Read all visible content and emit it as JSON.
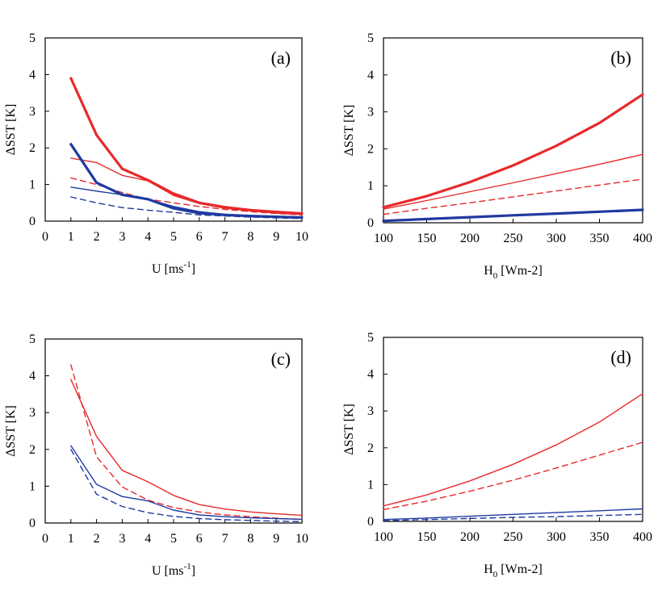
{
  "colors": {
    "red": "#e8292b",
    "blue": "#1f3aa0"
  },
  "chart_data": [
    {
      "type": "line",
      "panel_label": "(a)",
      "xlabel": {
        "main": "U [ms",
        "sup": "-1",
        "end": "]"
      },
      "ylabel": "ΔSST [K]",
      "xlim": [
        0,
        10
      ],
      "ylim": [
        0,
        5
      ],
      "xticks": [
        "0",
        "1",
        "2",
        "3",
        "4",
        "5",
        "6",
        "7",
        "8",
        "9",
        "10"
      ],
      "yticks": [
        "0",
        "1",
        "2",
        "3",
        "4",
        "5"
      ],
      "series": [
        {
          "color": "red",
          "style": "thick",
          "x": [
            1,
            2,
            3,
            4,
            5,
            6,
            7,
            8,
            9,
            10
          ],
          "y": [
            3.9,
            2.35,
            1.43,
            1.12,
            0.75,
            0.5,
            0.38,
            0.3,
            0.25,
            0.21
          ]
        },
        {
          "color": "red",
          "style": "thin",
          "x": [
            1,
            2,
            3,
            4,
            5,
            6,
            7,
            8,
            9,
            10
          ],
          "y": [
            1.72,
            1.6,
            1.25,
            1.1,
            0.7,
            0.48,
            0.35,
            0.28,
            0.22,
            0.18
          ]
        },
        {
          "color": "red",
          "style": "dashed",
          "x": [
            1,
            2,
            3,
            4,
            5,
            6,
            7,
            8,
            9,
            10
          ],
          "y": [
            1.18,
            1.0,
            0.78,
            0.6,
            0.5,
            0.4,
            0.32,
            0.26,
            0.21,
            0.17
          ]
        },
        {
          "color": "blue",
          "style": "thick",
          "x": [
            1,
            2,
            3,
            4,
            5,
            6,
            7,
            8,
            9,
            10
          ],
          "y": [
            2.1,
            1.05,
            0.72,
            0.6,
            0.35,
            0.22,
            0.17,
            0.14,
            0.12,
            0.1
          ]
        },
        {
          "color": "blue",
          "style": "thin",
          "x": [
            1,
            2,
            3,
            4,
            5,
            6,
            7,
            8,
            9,
            10
          ],
          "y": [
            0.93,
            0.82,
            0.72,
            0.6,
            0.4,
            0.26,
            0.19,
            0.15,
            0.12,
            0.1
          ]
        },
        {
          "color": "blue",
          "style": "dashed",
          "x": [
            1,
            2,
            3,
            4,
            5,
            6,
            7,
            8,
            9,
            10
          ],
          "y": [
            0.66,
            0.5,
            0.37,
            0.3,
            0.24,
            0.17,
            0.14,
            0.11,
            0.09,
            0.07
          ]
        }
      ]
    },
    {
      "type": "line",
      "panel_label": "(b)",
      "xlabel": {
        "main": "H",
        "sub": "0",
        "end": " [Wm-2]"
      },
      "ylabel": "ΔSST [K]",
      "xlim": [
        100,
        400
      ],
      "ylim": [
        0,
        5
      ],
      "xticks": [
        "100",
        "150",
        "200",
        "250",
        "300",
        "350",
        "400"
      ],
      "yticks": [
        "0",
        "1",
        "2",
        "3",
        "4",
        "5"
      ],
      "series": [
        {
          "color": "red",
          "style": "thick",
          "x": [
            100,
            150,
            200,
            250,
            300,
            350,
            400
          ],
          "y": [
            0.42,
            0.72,
            1.1,
            1.55,
            2.08,
            2.7,
            3.47
          ]
        },
        {
          "color": "red",
          "style": "thin",
          "x": [
            100,
            150,
            200,
            250,
            300,
            350,
            400
          ],
          "y": [
            0.37,
            0.6,
            0.84,
            1.08,
            1.33,
            1.58,
            1.85
          ]
        },
        {
          "color": "red",
          "style": "dashed",
          "x": [
            100,
            150,
            200,
            250,
            300,
            350,
            400
          ],
          "y": [
            0.23,
            0.39,
            0.54,
            0.7,
            0.86,
            1.02,
            1.18
          ]
        },
        {
          "color": "blue",
          "style": "thick",
          "x": [
            100,
            150,
            200,
            250,
            300,
            350,
            400
          ],
          "y": [
            0.05,
            0.1,
            0.15,
            0.2,
            0.25,
            0.3,
            0.35
          ]
        }
      ]
    },
    {
      "type": "line",
      "panel_label": "(c)",
      "xlabel": {
        "main": "U [ms",
        "sup": "-1",
        "end": "]"
      },
      "ylabel": "ΔSST [K]",
      "xlim": [
        0,
        10
      ],
      "ylim": [
        0,
        5
      ],
      "xticks": [
        "0",
        "1",
        "2",
        "3",
        "4",
        "5",
        "6",
        "7",
        "8",
        "9",
        "10"
      ],
      "yticks": [
        "0",
        "1",
        "2",
        "3",
        "4",
        "5"
      ],
      "series": [
        {
          "color": "red",
          "style": "thin",
          "x": [
            1,
            2,
            3,
            4,
            5,
            6,
            7,
            8,
            9,
            10
          ],
          "y": [
            3.9,
            2.35,
            1.43,
            1.12,
            0.75,
            0.5,
            0.38,
            0.3,
            0.25,
            0.21
          ]
        },
        {
          "color": "red",
          "style": "dashed",
          "x": [
            1,
            2,
            3,
            4,
            5,
            6,
            7,
            8,
            9,
            10
          ],
          "y": [
            4.3,
            1.8,
            0.98,
            0.62,
            0.42,
            0.3,
            0.22,
            0.17,
            0.13,
            0.1
          ]
        },
        {
          "color": "blue",
          "style": "thin",
          "x": [
            1,
            2,
            3,
            4,
            5,
            6,
            7,
            8,
            9,
            10
          ],
          "y": [
            2.1,
            1.05,
            0.72,
            0.6,
            0.35,
            0.22,
            0.17,
            0.14,
            0.12,
            0.1
          ]
        },
        {
          "color": "blue",
          "style": "dashed",
          "x": [
            1,
            2,
            3,
            4,
            5,
            6,
            7,
            8,
            9,
            10
          ],
          "y": [
            2.0,
            0.78,
            0.45,
            0.28,
            0.18,
            0.12,
            0.09,
            0.07,
            0.05,
            0.04
          ]
        }
      ]
    },
    {
      "type": "line",
      "panel_label": "(d)",
      "xlabel": {
        "main": "H",
        "sub": "0",
        "end": " [Wm-2]"
      },
      "ylabel": "ΔSST [K]",
      "xlim": [
        100,
        400
      ],
      "ylim": [
        0,
        5
      ],
      "xticks": [
        "100",
        "150",
        "200",
        "250",
        "300",
        "350",
        "400"
      ],
      "yticks": [
        "0",
        "1",
        "2",
        "3",
        "4",
        "5"
      ],
      "series": [
        {
          "color": "red",
          "style": "thin",
          "x": [
            100,
            150,
            200,
            250,
            300,
            350,
            400
          ],
          "y": [
            0.42,
            0.72,
            1.1,
            1.55,
            2.08,
            2.7,
            3.47
          ]
        },
        {
          "color": "red",
          "style": "dashed",
          "x": [
            100,
            150,
            200,
            250,
            300,
            350,
            400
          ],
          "y": [
            0.32,
            0.55,
            0.82,
            1.12,
            1.45,
            1.8,
            2.15
          ]
        },
        {
          "color": "blue",
          "style": "thin",
          "x": [
            100,
            150,
            200,
            250,
            300,
            350,
            400
          ],
          "y": [
            0.05,
            0.09,
            0.14,
            0.19,
            0.24,
            0.29,
            0.34
          ]
        },
        {
          "color": "blue",
          "style": "dashed",
          "x": [
            100,
            150,
            200,
            250,
            300,
            350,
            400
          ],
          "y": [
            0.02,
            0.05,
            0.08,
            0.11,
            0.13,
            0.16,
            0.19
          ]
        }
      ]
    }
  ]
}
